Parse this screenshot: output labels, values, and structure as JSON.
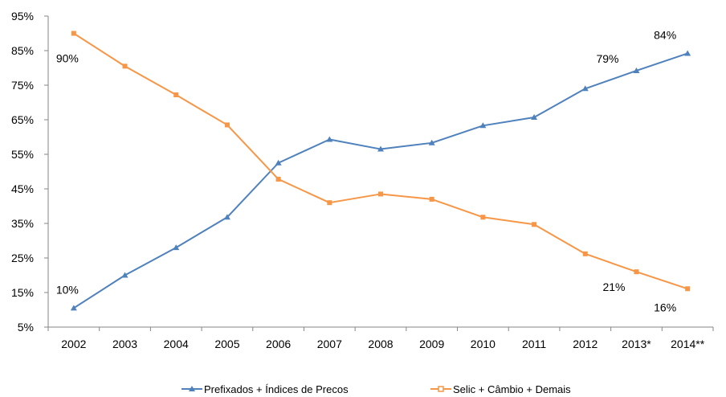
{
  "chart_data": {
    "type": "line",
    "categories": [
      "2002",
      "2003",
      "2004",
      "2005",
      "2006",
      "2007",
      "2008",
      "2009",
      "2010",
      "2011",
      "2012",
      "2013*",
      "2014**"
    ],
    "ylim": [
      5,
      95
    ],
    "yticks": [
      "5%",
      "15%",
      "25%",
      "35%",
      "45%",
      "55%",
      "65%",
      "75%",
      "85%",
      "95%"
    ],
    "grid": false,
    "legend_position": "bottom",
    "series": [
      {
        "name": "Prefixados + Índices de Precos",
        "color": "#4F81BD",
        "marker": "triangle",
        "values": [
          10.5,
          20,
          28,
          36.8,
          52.5,
          59.3,
          56.5,
          58.3,
          63.3,
          65.7,
          74,
          79.2,
          84.2
        ]
      },
      {
        "name": "Selic + Câmbio + Demais",
        "color": "#F79646",
        "marker": "square",
        "values": [
          90,
          80.5,
          72.2,
          63.5,
          47.8,
          41,
          43.5,
          42,
          36.8,
          34.7,
          26.2,
          21,
          16.1
        ]
      }
    ],
    "annotations": [
      {
        "text": "90%",
        "series": 1,
        "index": 0
      },
      {
        "text": "10%",
        "series": 0,
        "index": 0
      },
      {
        "text": "79%",
        "series": 0,
        "index": 11
      },
      {
        "text": "84%",
        "series": 0,
        "index": 12
      },
      {
        "text": "21%",
        "series": 1,
        "index": 11
      },
      {
        "text": "16%",
        "series": 1,
        "index": 12
      }
    ]
  }
}
